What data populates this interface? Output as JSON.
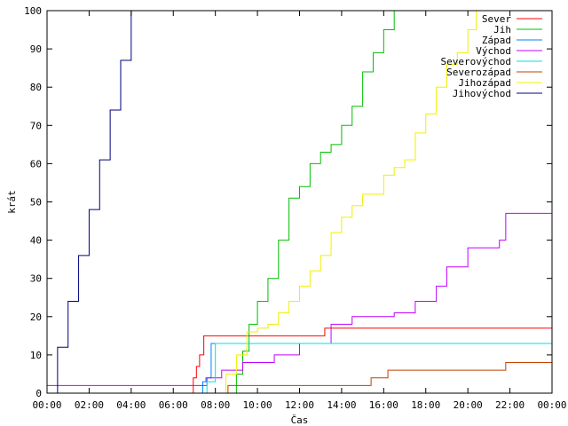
{
  "chart_data": {
    "type": "line",
    "xlabel": "Čas",
    "ylabel": "krát",
    "xlim": [
      0,
      24
    ],
    "ylim": [
      0,
      100
    ],
    "x_ticks": [
      {
        "value": 0,
        "label": "00:00"
      },
      {
        "value": 2,
        "label": "02:00"
      },
      {
        "value": 4,
        "label": "04:00"
      },
      {
        "value": 6,
        "label": "06:00"
      },
      {
        "value": 8,
        "label": "08:00"
      },
      {
        "value": 10,
        "label": "10:00"
      },
      {
        "value": 12,
        "label": "12:00"
      },
      {
        "value": 14,
        "label": "14:00"
      },
      {
        "value": 16,
        "label": "16:00"
      },
      {
        "value": 18,
        "label": "18:00"
      },
      {
        "value": 20,
        "label": "20:00"
      },
      {
        "value": 22,
        "label": "22:00"
      },
      {
        "value": 24,
        "label": "00:00"
      }
    ],
    "y_ticks": [
      {
        "value": 0,
        "label": "0"
      },
      {
        "value": 10,
        "label": "10"
      },
      {
        "value": 20,
        "label": "20"
      },
      {
        "value": 30,
        "label": "30"
      },
      {
        "value": 40,
        "label": "40"
      },
      {
        "value": 50,
        "label": "50"
      },
      {
        "value": 60,
        "label": "60"
      },
      {
        "value": 70,
        "label": "70"
      },
      {
        "value": 80,
        "label": "80"
      },
      {
        "value": 90,
        "label": "90"
      },
      {
        "value": 100,
        "label": "100"
      }
    ],
    "grid": false,
    "legend_position": "top-right",
    "series": [
      {
        "name": "Sever",
        "color": "#ff0000",
        "x": [
          6.85,
          6.95,
          7.1,
          7.25,
          7.45,
          13.2,
          24
        ],
        "y": [
          0,
          4,
          7,
          10,
          15,
          17,
          17
        ]
      },
      {
        "name": "Jih",
        "color": "#00c000",
        "x": [
          8.7,
          9.0,
          9.3,
          9.6,
          10.0,
          10.5,
          11.0,
          11.5,
          12.0,
          12.5,
          13.0,
          13.5,
          14.0,
          14.5,
          15.0,
          15.5,
          16.0,
          16.5
        ],
        "y": [
          0,
          5,
          11,
          18,
          24,
          30,
          40,
          51,
          54,
          60,
          63,
          65,
          70,
          75,
          84,
          89,
          95,
          100
        ]
      },
      {
        "name": "Západ",
        "color": "#0080ff",
        "x": [
          7.25,
          7.4,
          7.55,
          7.8,
          24
        ],
        "y": [
          0,
          3,
          4,
          13,
          13
        ]
      },
      {
        "name": "Východ",
        "color": "#c000ff",
        "x": [
          0,
          7.0,
          7.6,
          8.3,
          9.3,
          10.8,
          12.0,
          13.5,
          14.5,
          16.5,
          17.5,
          18.5,
          19.0,
          20.0,
          21.5,
          21.8,
          24
        ],
        "y": [
          2,
          2,
          4,
          6,
          8,
          10,
          13,
          18,
          20,
          21,
          24,
          28,
          33,
          38,
          40,
          47,
          47
        ]
      },
      {
        "name": "Severovýchod",
        "color": "#00e0e0",
        "x": [
          7.35,
          7.6,
          8.0,
          24
        ],
        "y": [
          0,
          3,
          13,
          13
        ]
      },
      {
        "name": "Severozápad",
        "color": "#c04000",
        "x": [
          8.05,
          8.6,
          15.3,
          15.4,
          16.2,
          20.8,
          21.8,
          24
        ],
        "y": [
          0,
          2,
          2,
          4,
          6,
          6,
          8,
          10
        ]
      },
      {
        "name": "Jihozápad",
        "color": "#f0f000",
        "x": [
          7.95,
          8.5,
          9.0,
          9.5,
          10.0,
          10.5,
          11.0,
          11.5,
          12.0,
          12.5,
          13.0,
          13.5,
          14.0,
          14.5,
          15.0,
          15.5,
          16.0,
          16.5,
          17.0,
          17.5,
          18.0,
          18.5,
          19.0,
          19.5,
          20.0,
          20.4
        ],
        "y": [
          0,
          5,
          10,
          16,
          17,
          18,
          21,
          24,
          28,
          32,
          36,
          42,
          46,
          49,
          52,
          52,
          57,
          59,
          61,
          68,
          73,
          80,
          86,
          89,
          95,
          100
        ]
      },
      {
        "name": "Jihovýchod",
        "color": "#000080",
        "x": [
          0.1,
          0.5,
          1.0,
          1.5,
          2.0,
          2.5,
          3.0,
          3.5,
          4.0
        ],
        "y": [
          0,
          12,
          24,
          36,
          48,
          61,
          74,
          87,
          100
        ]
      }
    ]
  }
}
